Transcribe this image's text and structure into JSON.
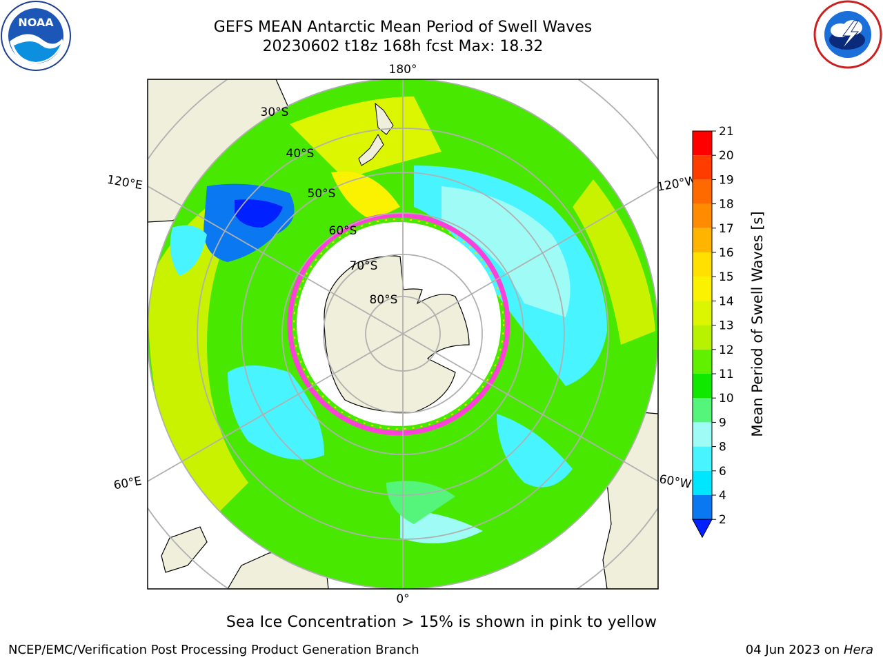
{
  "title_line1": "GEFS MEAN Antarctic Mean Period of Swell Waves",
  "title_line2": "20230602 t18z 168h fcst   Max: 18.32",
  "logos": {
    "left": "NOAA",
    "right": "NATIONAL WEATHER SERVICE"
  },
  "map": {
    "projection": "south-polar-stereographic",
    "lon_labels": {
      "top": "180°",
      "bottom": "0°",
      "left_upper": "120°E",
      "left_lower": "60°E",
      "right_upper": "120°W",
      "right_lower": "60°W"
    },
    "lat_labels": [
      "30°S",
      "40°S",
      "50°S",
      "60°S",
      "70°S",
      "80°S"
    ]
  },
  "colorbar": {
    "label": "Mean Period of Swell Waves [s]",
    "ticks": [
      "2",
      "4",
      "6",
      "8",
      "9",
      "10",
      "11",
      "12",
      "13",
      "14",
      "15",
      "16",
      "17",
      "18",
      "19",
      "20",
      "21"
    ],
    "colors": [
      "#0a78f0",
      "#00e6ff",
      "#48f4ff",
      "#9efbf6",
      "#55f57c",
      "#10e800",
      "#60f000",
      "#b8f200",
      "#dcf500",
      "#faf200",
      "#ffe000",
      "#ffb400",
      "#ff8c00",
      "#ff6a00",
      "#ff3c00",
      "#ff0000"
    ],
    "extend_low_color": "#0020ff"
  },
  "caption": "Sea Ice Concentration > 15% is shown in pink to yellow",
  "footer_left": "NCEP/EMC/Verification Post Processing Product Generation Branch",
  "footer_date": "04 Jun 2023 on ",
  "footer_host": "Hera"
}
